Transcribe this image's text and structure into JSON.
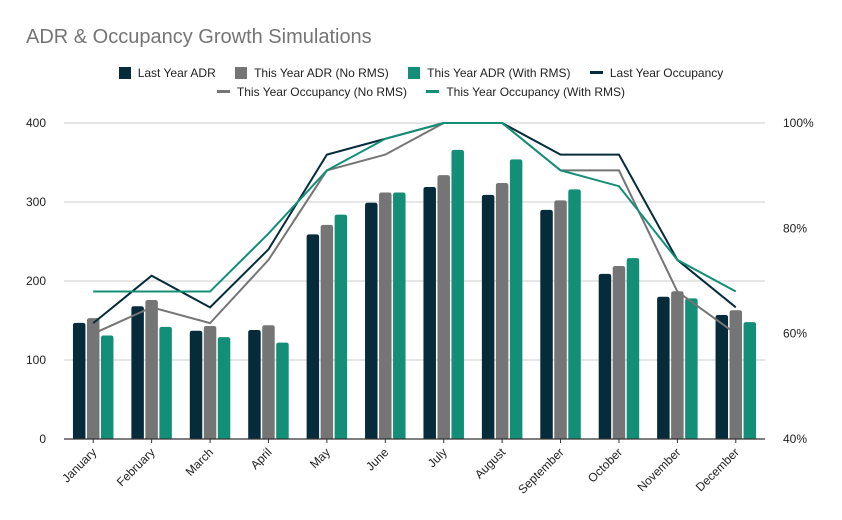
{
  "chart_data": {
    "type": "bar",
    "title": "ADR & Occupancy Growth Simulations",
    "xlabel": "",
    "ylabel": "",
    "y2label": "",
    "categories": [
      "January",
      "February",
      "March",
      "April",
      "May",
      "June",
      "July",
      "August",
      "September",
      "October",
      "November",
      "December"
    ],
    "ylim": [
      0,
      400
    ],
    "yticks": [
      "0",
      "100",
      "200",
      "300",
      "400"
    ],
    "y2lim": [
      40,
      100
    ],
    "y2ticks": [
      "40%",
      "60%",
      "80%",
      "100%"
    ],
    "grid": true,
    "legend_position": "top",
    "series": [
      {
        "name": "Last Year ADR",
        "type": "bar",
        "axis": "left",
        "color": "#062c3b",
        "values": [
          147,
          168,
          137,
          138,
          259,
          299,
          319,
          309,
          290,
          209,
          180,
          157
        ]
      },
      {
        "name": "This Year ADR (No RMS)",
        "type": "bar",
        "axis": "left",
        "color": "#757575",
        "values": [
          153,
          176,
          143,
          144,
          271,
          312,
          334,
          324,
          302,
          219,
          187,
          163
        ]
      },
      {
        "name": "This Year ADR (With RMS)",
        "type": "bar",
        "axis": "left",
        "color": "#128f76",
        "values": [
          131,
          142,
          129,
          122,
          284,
          312,
          366,
          354,
          316,
          229,
          178,
          148
        ]
      },
      {
        "name": "Last Year Occupancy",
        "type": "line",
        "axis": "right",
        "color": "#062c3b",
        "values": [
          62,
          71,
          65,
          76,
          94,
          97,
          100,
          100,
          94,
          94,
          74,
          65
        ]
      },
      {
        "name": "This Year Occupancy (No RMS)",
        "type": "line",
        "axis": "right",
        "color": "#757575",
        "values": [
          60,
          65,
          62,
          74,
          91,
          94,
          100,
          100,
          91,
          91,
          68,
          60
        ]
      },
      {
        "name": "This Year Occupancy (With RMS)",
        "type": "line",
        "axis": "right",
        "color": "#128f76",
        "values": [
          68,
          68,
          68,
          79,
          91,
          97,
          100,
          100,
          91,
          88,
          74,
          68
        ]
      }
    ]
  }
}
